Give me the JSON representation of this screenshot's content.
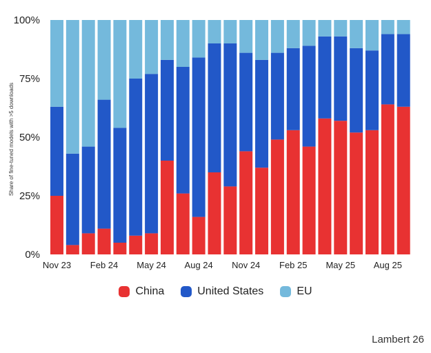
{
  "chart_data": {
    "type": "stacked-bar",
    "ylabel": "Share of fine-tuned models with >5 downloads",
    "yticks": [
      "0%",
      "25%",
      "50%",
      "75%",
      "100%"
    ],
    "ylim": [
      0,
      100
    ],
    "xticks": [
      {
        "index": 0,
        "label": "Nov 23"
      },
      {
        "index": 3,
        "label": "Feb 24"
      },
      {
        "index": 6,
        "label": "May 24"
      },
      {
        "index": 9,
        "label": "Aug 24"
      },
      {
        "index": 12,
        "label": "Nov 24"
      },
      {
        "index": 15,
        "label": "Feb 25"
      },
      {
        "index": 18,
        "label": "May 25"
      },
      {
        "index": 21,
        "label": "Aug 25"
      }
    ],
    "categories": [
      "Nov 23",
      "Dec 23",
      "Jan 24",
      "Feb 24",
      "Mar 24",
      "Apr 24",
      "May 24",
      "Jun 24",
      "Jul 24",
      "Aug 24",
      "Sep 24",
      "Oct 24",
      "Nov 24",
      "Dec 24",
      "Jan 25",
      "Feb 25",
      "Mar 25",
      "Apr 25",
      "May 25",
      "Jun 25",
      "Jul 25",
      "Aug 25",
      "Sep 25"
    ],
    "series": [
      {
        "name": "China",
        "color": "#e83232",
        "values": [
          25,
          4,
          9,
          11,
          5,
          8,
          9,
          40,
          26,
          16,
          35,
          29,
          44,
          37,
          49,
          53,
          46,
          58,
          57,
          52,
          53,
          64,
          63
        ]
      },
      {
        "name": "United States",
        "color": "#2258c8",
        "values": [
          38,
          39,
          37,
          55,
          49,
          67,
          68,
          43,
          54,
          68,
          55,
          61,
          42,
          46,
          37,
          35,
          43,
          35,
          36,
          36,
          34,
          30,
          31
        ]
      },
      {
        "name": "EU",
        "color": "#74b9dc",
        "values": [
          37,
          57,
          54,
          34,
          46,
          25,
          23,
          17,
          20,
          16,
          10,
          10,
          14,
          17,
          14,
          12,
          11,
          7,
          7,
          12,
          13,
          6,
          6
        ]
      }
    ]
  },
  "legend": [
    {
      "label": "China",
      "color": "#e83232"
    },
    {
      "label": "United States",
      "color": "#2258c8"
    },
    {
      "label": "EU",
      "color": "#74b9dc"
    }
  ],
  "credit": "Lambert 26"
}
